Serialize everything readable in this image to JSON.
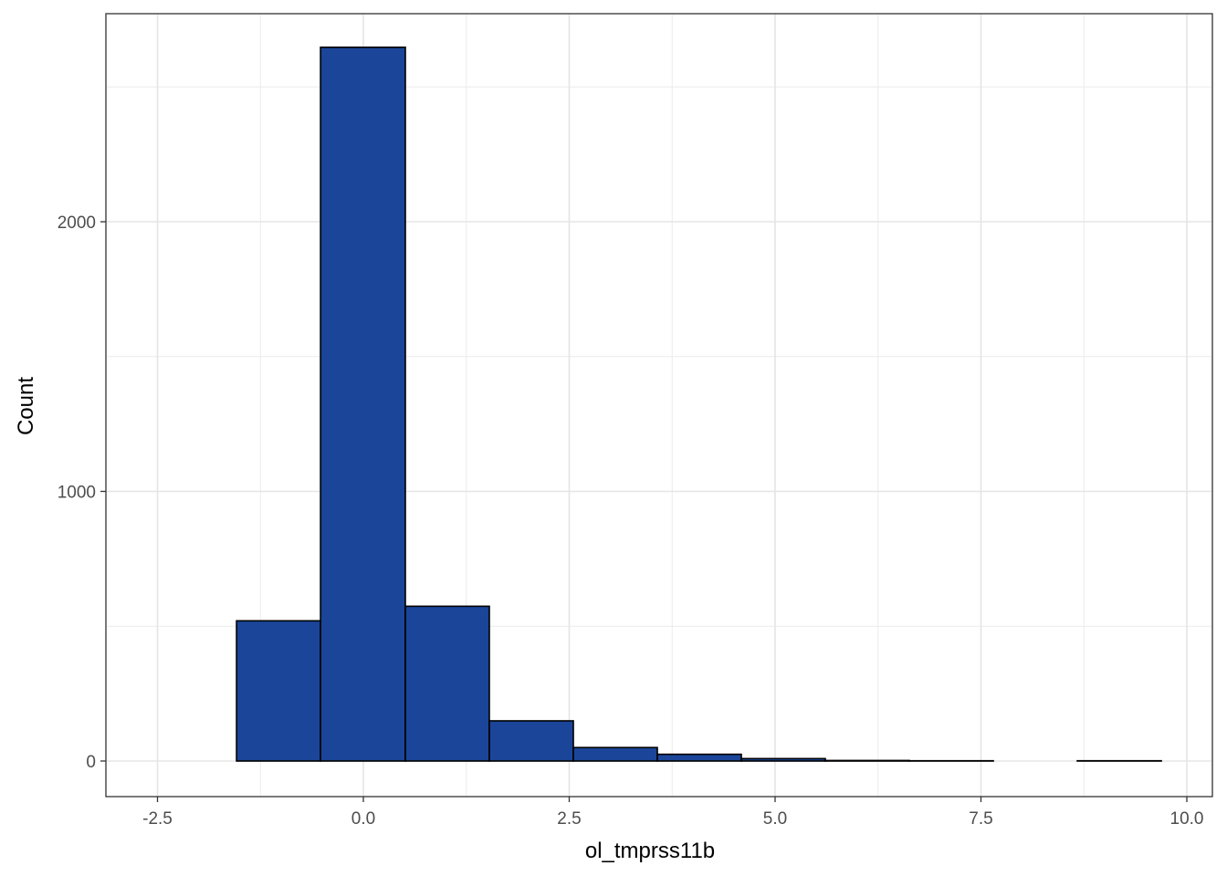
{
  "chart_data": {
    "type": "bar",
    "xlabel": "ol_tmprss11b",
    "ylabel": "Count",
    "xlim": [
      -2.75,
      10.25
    ],
    "ylim": [
      -130,
      2770
    ],
    "x_ticks": [
      -2.5,
      0.0,
      2.5,
      5.0,
      7.5,
      10.0
    ],
    "x_tick_labels": [
      "-2.5",
      "0.0",
      "2.5",
      "5.0",
      "7.5",
      "10.0"
    ],
    "y_ticks": [
      0,
      1000,
      2000
    ],
    "y_tick_labels": [
      "0",
      "1000",
      "2000"
    ],
    "bin_width": 1.02,
    "bins": [
      {
        "xmin": -2.56,
        "xmax": -1.54,
        "count": 0
      },
      {
        "xmin": -1.54,
        "xmax": -0.52,
        "count": 520
      },
      {
        "xmin": -0.52,
        "xmax": 0.51,
        "count": 2647
      },
      {
        "xmin": 0.51,
        "xmax": 1.53,
        "count": 574
      },
      {
        "xmin": 1.53,
        "xmax": 2.55,
        "count": 149
      },
      {
        "xmin": 2.55,
        "xmax": 3.57,
        "count": 50
      },
      {
        "xmin": 3.57,
        "xmax": 4.59,
        "count": 25
      },
      {
        "xmin": 4.59,
        "xmax": 5.61,
        "count": 9
      },
      {
        "xmin": 5.61,
        "xmax": 6.63,
        "count": 2
      },
      {
        "xmin": 6.63,
        "xmax": 7.65,
        "count": 1
      },
      {
        "xmin": 7.65,
        "xmax": 8.67,
        "count": 0
      },
      {
        "xmin": 8.67,
        "xmax": 9.69,
        "count": 1
      }
    ],
    "fill_color": "#1a4599",
    "edge_color": "#000000",
    "grid": true,
    "theme": "bw"
  }
}
